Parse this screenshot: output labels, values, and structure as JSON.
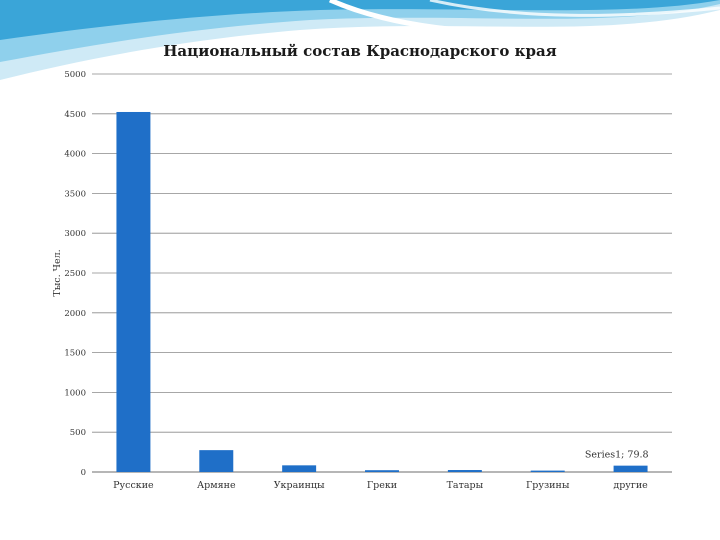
{
  "colors": {
    "bar": "#1f6fc8",
    "grid": "#8a8a8a",
    "wave_light": "#cfeaf6",
    "wave_mid": "#8fd0ec",
    "wave_dark": "#3aa5d8"
  },
  "chart_data": {
    "type": "bar",
    "title": "Национальный состав Краснодарского края",
    "xlabel": "",
    "ylabel": "Тыс. Чел.",
    "categories": [
      "Русские",
      "Армяне",
      "Украинцы",
      "Греки",
      "Татары",
      "Грузины",
      "другие"
    ],
    "series": [
      {
        "values": [
          4522.9,
          274.6,
          83.7,
          22.6,
          24.8,
          17.5,
          79.8
        ]
      }
    ],
    "ylim": [
      0,
      5000
    ],
    "yticks": [
      0,
      500,
      1000,
      1500,
      2000,
      2500,
      3000,
      3500,
      4000,
      4500,
      5000
    ],
    "grid": true,
    "annotation": {
      "category_index": 6,
      "text": "Series1; 79.8"
    }
  }
}
